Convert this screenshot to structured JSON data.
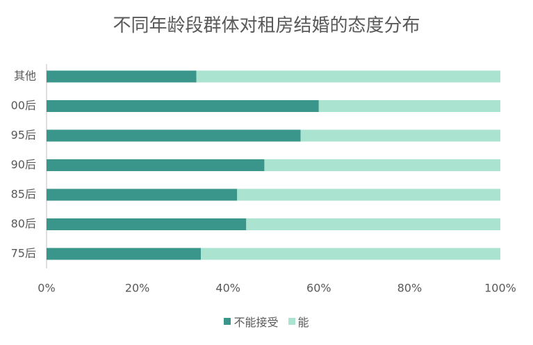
{
  "chart_data": {
    "type": "bar",
    "orientation": "horizontal",
    "stacked": true,
    "title": "不同年龄段群体对租房结婚的态度分布",
    "categories": [
      "其他",
      "00后",
      "95后",
      "90后",
      "85后",
      "80后",
      "75后"
    ],
    "series": [
      {
        "name": "不能接受",
        "color": "#3a968a",
        "values": [
          33,
          60,
          56,
          48,
          42,
          44,
          34
        ]
      },
      {
        "name": "能",
        "color": "#abe3d1",
        "values": [
          67,
          40,
          44,
          52,
          58,
          56,
          66
        ]
      }
    ],
    "xlim": [
      0,
      100
    ],
    "x_ticks": [
      "0%",
      "20%",
      "40%",
      "60%",
      "80%",
      "100%"
    ],
    "grid": false,
    "legend_position": "bottom"
  }
}
